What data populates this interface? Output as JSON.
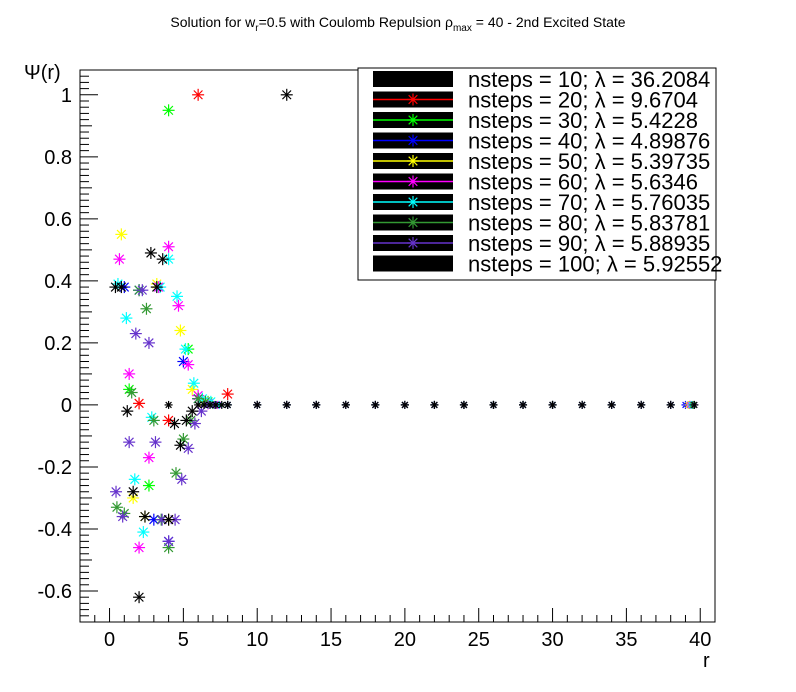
{
  "title": {
    "prefix": "Solution for w",
    "sub_r": "r",
    "middle": "=0.5 with Coulomb Repulsion ρ",
    "sub_max": "max",
    "suffix": " = 40 - 2nd Excited State"
  },
  "chart_data": {
    "type": "scatter",
    "title": "Solution for w_r=0.5 with Coulomb Repulsion ρ_max = 40 - 2nd Excited State",
    "xlabel": "r",
    "ylabel": "Ψ(r)",
    "xlim": [
      -2,
      41
    ],
    "ylim": [
      -0.7,
      1.08
    ],
    "xticks": [
      0,
      5,
      10,
      15,
      20,
      25,
      30,
      35,
      40
    ],
    "yticks": [
      -0.6,
      -0.4,
      -0.2,
      0,
      0.2,
      0.4,
      0.6,
      0.8,
      1
    ],
    "ytick_labels": [
      "-0.6",
      "-0.4",
      "-0.2",
      "0",
      "0.2",
      "0.4",
      "0.6",
      "0.8",
      "1"
    ],
    "legend_position": "top-right",
    "grid": false,
    "series": [
      {
        "name": "nsteps = 10; λ = 36.2084",
        "nsteps": 10,
        "color": "#000000",
        "x": [
          4,
          12
        ],
        "y": [
          0,
          1.0
        ]
      },
      {
        "name": "nsteps = 20; λ = 9.6704",
        "nsteps": 20,
        "color": "#ff0000",
        "x": [
          2,
          4,
          6,
          8,
          10,
          12,
          14,
          16,
          18,
          20,
          22,
          24,
          26,
          28,
          30,
          32,
          34,
          36,
          38
        ],
        "y": [
          0.005,
          -0.05,
          1.0,
          0.035,
          0,
          0,
          0,
          0,
          0,
          0,
          0,
          0,
          0,
          0,
          0,
          0,
          0,
          0,
          0
        ]
      },
      {
        "name": "nsteps = 30; λ = 5.4228",
        "nsteps": 30,
        "color": "#00ff00",
        "x": [
          1.33,
          2.67,
          4.0,
          5.33,
          6.67,
          8,
          10,
          12,
          14,
          16,
          18,
          20,
          22,
          24,
          26,
          28,
          30,
          32,
          34,
          36,
          38,
          39.3
        ],
        "y": [
          0.05,
          -0.26,
          0.95,
          0.18,
          0.01,
          0,
          0,
          0,
          0,
          0,
          0,
          0,
          0,
          0,
          0,
          0,
          0,
          0,
          0,
          0,
          0,
          0
        ]
      },
      {
        "name": "nsteps = 40; λ = 4.89876",
        "nsteps": 40,
        "color": "#0000ff",
        "x": [
          1.0,
          2.0,
          3.0,
          4.0,
          5.0,
          6.0,
          7,
          8,
          10,
          12,
          14,
          16,
          18,
          20,
          22,
          24,
          26,
          28,
          30,
          32,
          34,
          36,
          38,
          39
        ],
        "y": [
          0.38,
          0.37,
          -0.37,
          -0.44,
          0.14,
          0.02,
          0,
          0,
          0,
          0,
          0,
          0,
          0,
          0,
          0,
          0,
          0,
          0,
          0,
          0,
          0,
          0,
          0,
          0
        ]
      },
      {
        "name": "nsteps = 50; λ = 5.39735",
        "nsteps": 50,
        "color": "#ffff00",
        "x": [
          0.8,
          1.6,
          2.4,
          3.2,
          4.0,
          4.8,
          5.6,
          6.4,
          7.2,
          8,
          10,
          12,
          14,
          16,
          18,
          20,
          22,
          24,
          26,
          28,
          30,
          32,
          34,
          36,
          38,
          39.2
        ],
        "y": [
          0.55,
          -0.3,
          -0.36,
          0.39,
          -0.37,
          0.24,
          0.05,
          0.01,
          0,
          0,
          0,
          0,
          0,
          0,
          0,
          0,
          0,
          0,
          0,
          0,
          0,
          0,
          0,
          0,
          0,
          0
        ]
      },
      {
        "name": "nsteps = 60; λ = 5.6346",
        "nsteps": 60,
        "color": "#ff00ff",
        "x": [
          0.67,
          1.33,
          2.0,
          2.67,
          3.33,
          4.0,
          4.67,
          5.33,
          6.0,
          6.67,
          7.33,
          8,
          10,
          12,
          14,
          16,
          18,
          20,
          22,
          24,
          26,
          28,
          30,
          32,
          34,
          36,
          38,
          39.3
        ],
        "y": [
          0.47,
          0.1,
          -0.46,
          -0.17,
          0.38,
          0.51,
          0.32,
          0.13,
          0.03,
          0.005,
          0,
          0,
          0,
          0,
          0,
          0,
          0,
          0,
          0,
          0,
          0,
          0,
          0,
          0,
          0,
          0,
          0,
          0
        ]
      },
      {
        "name": "nsteps = 70; λ = 5.76035",
        "nsteps": 70,
        "color": "#00ffff",
        "x": [
          0.57,
          1.14,
          1.71,
          2.29,
          2.86,
          3.43,
          4.0,
          4.57,
          5.14,
          5.71,
          6.29,
          6.86,
          7.43,
          8,
          10,
          12,
          14,
          16,
          18,
          20,
          22,
          24,
          26,
          28,
          30,
          32,
          34,
          36,
          38,
          39.4
        ],
        "y": [
          0.39,
          0.28,
          -0.24,
          -0.41,
          -0.04,
          0.38,
          0.47,
          0.35,
          0.18,
          0.07,
          0.02,
          0.01,
          0,
          0,
          0,
          0,
          0,
          0,
          0,
          0,
          0,
          0,
          0,
          0,
          0,
          0,
          0,
          0,
          0,
          0
        ]
      },
      {
        "name": "nsteps = 80; λ = 5.83781",
        "nsteps": 80,
        "color": "#339933",
        "x": [
          0.5,
          1.0,
          1.5,
          2.0,
          2.5,
          3.0,
          3.5,
          4.0,
          4.5,
          5.0,
          5.5,
          6.0,
          6.5,
          7.0,
          8,
          10,
          12,
          14,
          16,
          18,
          20,
          22,
          24,
          26,
          28,
          30,
          32,
          34,
          36,
          38,
          39.5
        ],
        "y": [
          -0.33,
          -0.35,
          0.04,
          0.37,
          0.31,
          -0.05,
          -0.37,
          -0.46,
          -0.22,
          -0.11,
          -0.05,
          0.02,
          0.01,
          0,
          0,
          0,
          0,
          0,
          0,
          0,
          0,
          0,
          0,
          0,
          0,
          0,
          0,
          0,
          0,
          0,
          0
        ]
      },
      {
        "name": "nsteps = 90; λ = 5.88935",
        "nsteps": 90,
        "color": "#6633cc",
        "x": [
          0.44,
          0.89,
          1.33,
          1.78,
          2.22,
          2.67,
          3.11,
          3.56,
          4.0,
          4.44,
          4.89,
          5.33,
          5.78,
          6.22,
          6.67,
          7.11,
          8,
          10,
          12,
          14,
          16,
          18,
          20,
          22,
          24,
          26,
          28,
          30,
          32,
          34,
          36,
          38,
          39.6
        ],
        "y": [
          -0.28,
          -0.36,
          -0.12,
          0.23,
          0.37,
          0.2,
          -0.12,
          -0.37,
          -0.44,
          -0.37,
          -0.24,
          -0.14,
          -0.06,
          -0.02,
          0.0,
          0.0,
          0,
          0,
          0,
          0,
          0,
          0,
          0,
          0,
          0,
          0,
          0,
          0,
          0,
          0,
          0,
          0,
          0
        ]
      },
      {
        "name": "nsteps = 100; λ = 5.92552",
        "nsteps": 100,
        "color": "#000000",
        "x": [
          0.4,
          0.8,
          1.2,
          1.6,
          2.0,
          2.4,
          2.8,
          3.2,
          3.6,
          4.0,
          4.4,
          4.8,
          5.2,
          5.6,
          6.0,
          6.4,
          6.8,
          7.2,
          7.6,
          8.0,
          10,
          12,
          14,
          16,
          18,
          20,
          22,
          24,
          26,
          28,
          30,
          32,
          34,
          36,
          38,
          39.6
        ],
        "y": [
          0.38,
          0.38,
          -0.02,
          -0.28,
          -0.62,
          -0.36,
          0.49,
          0.38,
          0.47,
          -0.37,
          -0.06,
          -0.13,
          -0.05,
          -0.02,
          0.0,
          0.0,
          0.0,
          0.0,
          0.0,
          0.0,
          0,
          0,
          0,
          0,
          0,
          0,
          0,
          0,
          0,
          0,
          0,
          0,
          0,
          0,
          0,
          0
        ]
      }
    ]
  }
}
